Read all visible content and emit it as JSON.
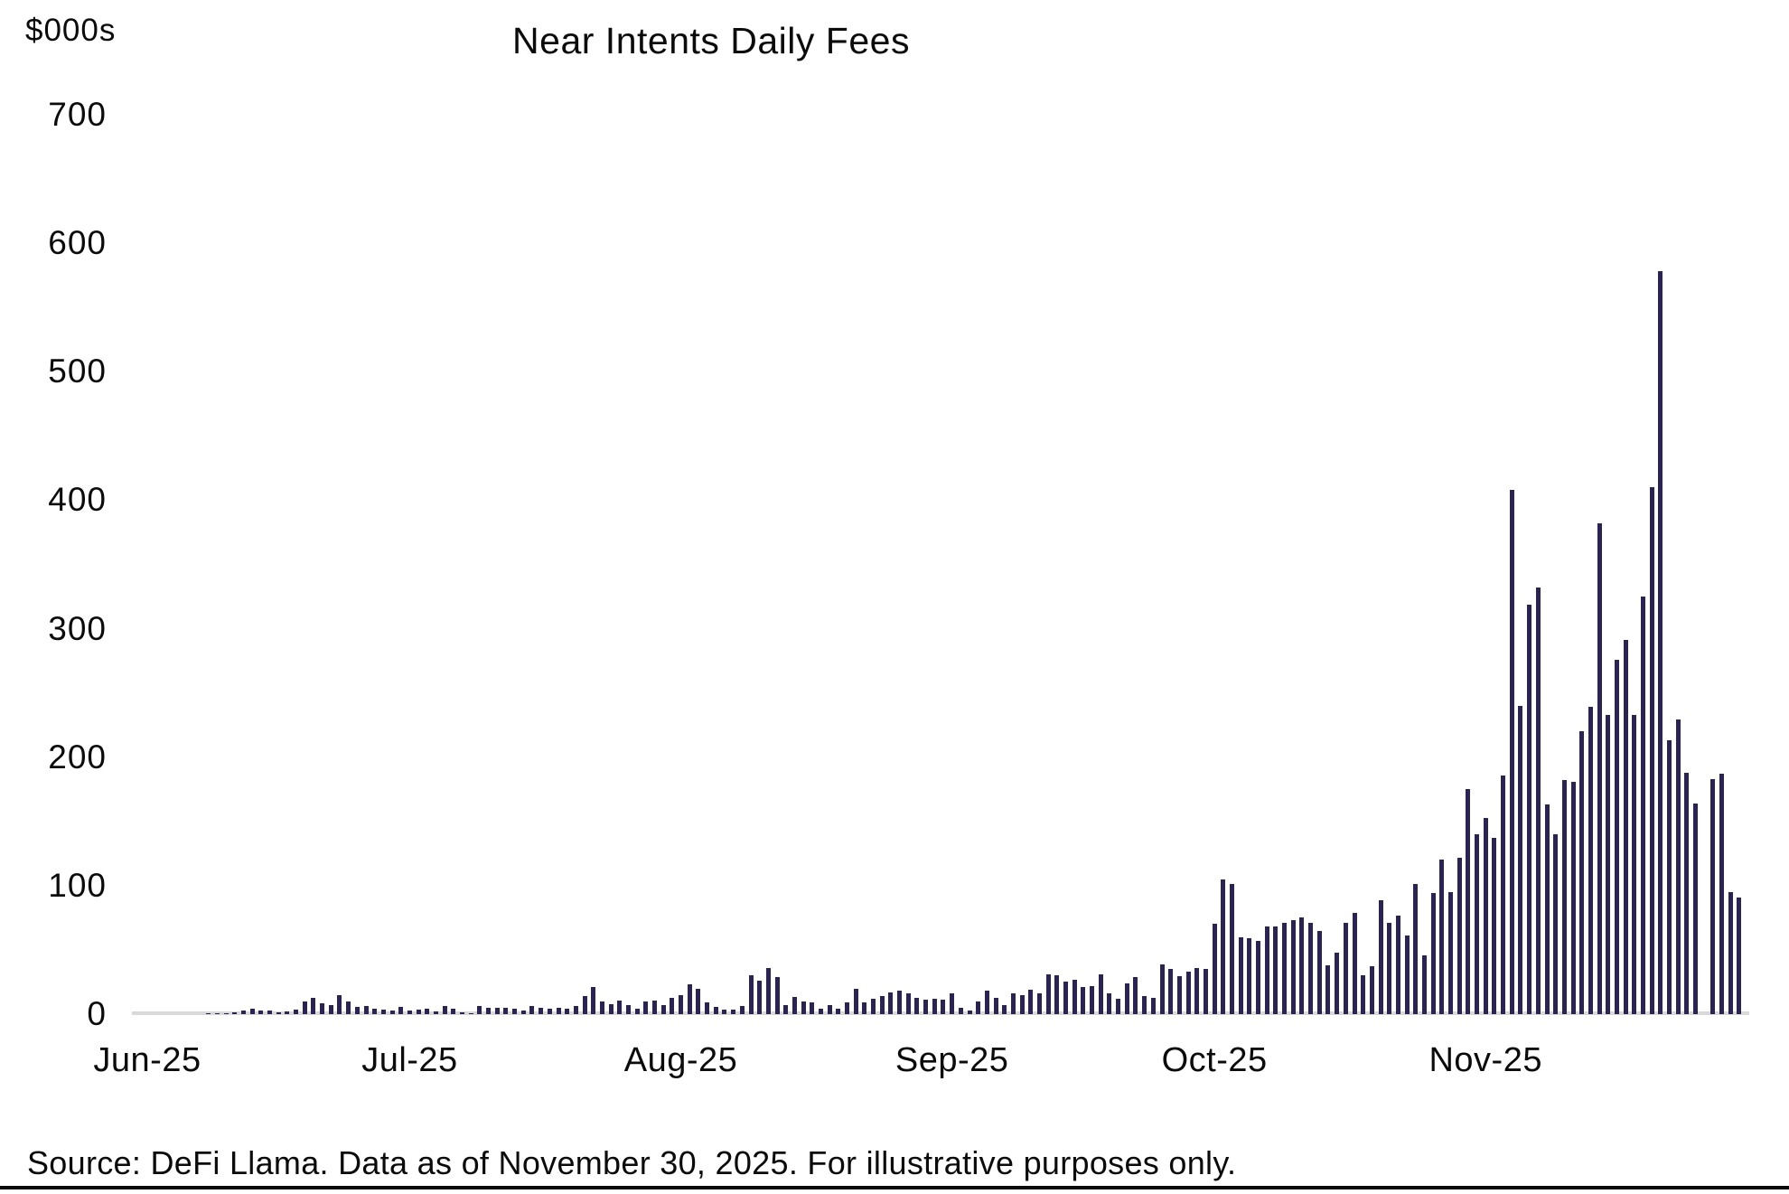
{
  "title": "Near Intents Daily Fees",
  "y_axis_unit_label": "$000s",
  "source_note": "Source: DeFi Llama. Data as of November 30, 2025. For illustrative purposes only.",
  "colors": {
    "bar": "#2b2350",
    "axis_line": "#d9d9d9",
    "text": "#0b0b0b",
    "footer_rule": "#0a0a0a"
  },
  "chart_data": {
    "type": "bar",
    "title": "Near Intents Daily Fees",
    "ylabel": "$000s",
    "xlabel": "",
    "ylim": [
      0,
      700
    ],
    "y_ticks": [
      0,
      100,
      200,
      300,
      400,
      500,
      600,
      700
    ],
    "grid": false,
    "legend": false,
    "x_unit": "day",
    "x_tick_labels": [
      "Jun-25",
      "Jul-25",
      "Aug-25",
      "Sep-25",
      "Oct-25",
      "Nov-25"
    ],
    "series": [
      {
        "month": "Jun-25",
        "values": [
          0,
          0,
          0,
          0,
          0,
          0,
          0,
          0.5,
          0.8,
          0.6,
          1.5,
          3,
          4,
          2.5,
          3,
          1.5,
          2,
          3.5,
          10,
          13,
          8.5,
          7,
          15,
          10,
          5.5,
          6.5,
          4.5,
          3.5,
          3,
          5.5
        ]
      },
      {
        "month": "Jul-25",
        "values": [
          2.5,
          3.5,
          4,
          2,
          6,
          4,
          1.5,
          0.7,
          6,
          5,
          5,
          5,
          4.5,
          2.5,
          6.5,
          5,
          4.5,
          5,
          4.5,
          6,
          14,
          21,
          9.5,
          8,
          10.5,
          7,
          4.5,
          9.5,
          10.5,
          7,
          13
        ]
      },
      {
        "month": "Aug-25",
        "values": [
          15,
          23,
          20,
          9,
          5.5,
          3.5,
          3.5,
          6,
          30,
          26,
          36,
          29,
          7,
          13.5,
          10,
          9,
          4,
          7,
          4,
          9,
          20,
          9,
          12,
          14,
          17,
          18,
          16,
          13,
          11,
          12,
          11
        ]
      },
      {
        "month": "Sep-25",
        "values": [
          16,
          5,
          3,
          10,
          18,
          13,
          7,
          16,
          14.5,
          19,
          16,
          31,
          30,
          25.5,
          27,
          21,
          22,
          31,
          16.5,
          12,
          24,
          28.5,
          14,
          13,
          39,
          35,
          29.5,
          33,
          36,
          35.5
        ]
      },
      {
        "month": "Oct-25",
        "values": [
          70,
          105,
          101,
          60,
          59,
          57,
          68,
          68.5,
          71,
          73,
          75.5,
          71,
          65,
          38,
          47.5,
          71,
          79,
          30,
          37,
          88.5,
          71,
          77,
          61.5,
          101,
          46,
          94,
          120,
          95,
          122,
          175,
          140
        ]
      },
      {
        "month": "Nov-25",
        "values": [
          153,
          137,
          186,
          408,
          240,
          319,
          332,
          163,
          140,
          182,
          181,
          220,
          239,
          382,
          233,
          276,
          291,
          233,
          325,
          410,
          578,
          213,
          229,
          188,
          164,
          0,
          183,
          187,
          95,
          91
        ]
      }
    ]
  }
}
